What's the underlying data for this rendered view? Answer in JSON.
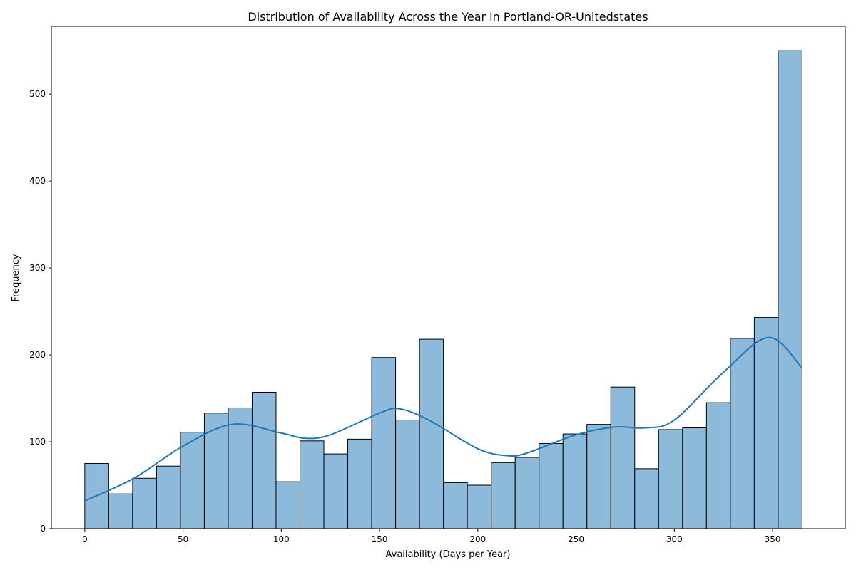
{
  "chart_data": {
    "type": "bar",
    "title": "Distribution of Availability Across the Year in Portland-OR-Unitedstates",
    "xlabel": "Availability (Days per Year)",
    "ylabel": "Frequency",
    "xlim": [
      -17,
      387
    ],
    "ylim": [
      0,
      578
    ],
    "xticks": [
      0,
      50,
      100,
      150,
      200,
      250,
      300,
      350
    ],
    "yticks": [
      0,
      100,
      200,
      300,
      400,
      500
    ],
    "bin_start": 0,
    "bin_width": 12.167,
    "values": [
      75,
      40,
      58,
      72,
      111,
      133,
      139,
      157,
      54,
      101,
      86,
      103,
      197,
      125,
      218,
      53,
      50,
      76,
      82,
      98,
      109,
      120,
      163,
      69,
      114,
      116,
      145,
      219,
      243,
      550
    ],
    "kde": {
      "x": [
        0,
        25,
        50,
        75,
        100,
        112,
        125,
        150,
        160,
        175,
        200,
        215,
        225,
        250,
        270,
        285,
        300,
        325,
        348,
        365
      ],
      "y": [
        32,
        58,
        95,
        120,
        110,
        104,
        108,
        133,
        138,
        125,
        92,
        84,
        87,
        108,
        117,
        116,
        125,
        180,
        220,
        185
      ]
    },
    "grid": false,
    "bar_color": "#8db9da",
    "edge_color": "#000000",
    "kde_color": "#1f77b4"
  }
}
